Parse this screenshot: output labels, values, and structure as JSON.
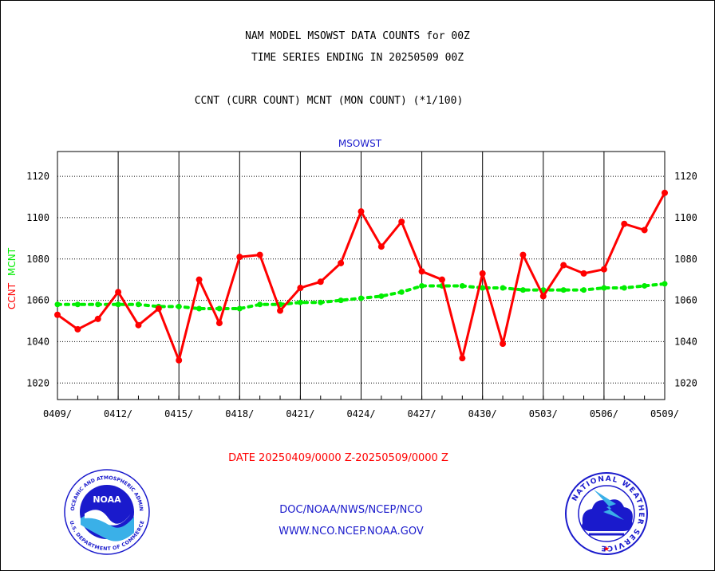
{
  "header": {
    "title_line1": "NAM MODEL MSOWST DATA COUNTS for 00Z",
    "title_line2": "TIME SERIES ENDING IN 20250509 00Z",
    "legend_line": "CCNT (CURR COUNT) MCNT (MON COUNT) (*1/100)"
  },
  "chart_data": {
    "type": "line",
    "title": "MSOWST",
    "ylabel_ccnt": "CCNT",
    "ylabel_mcnt": "MCNT",
    "xlabel": "DATE 20250409/0000 Z-20250509/0000 Z",
    "ylim": [
      1012,
      1132
    ],
    "y_ticks": [
      1020,
      1040,
      1060,
      1080,
      1100,
      1120
    ],
    "x_ticks": [
      "0409/",
      "0412/",
      "0415/",
      "0418/",
      "0421/",
      "0424/",
      "0427/",
      "0430/",
      "0503/",
      "0506/",
      "0509/"
    ],
    "x": [
      "0409",
      "0410",
      "0411",
      "0412",
      "0413",
      "0414",
      "0415",
      "0416",
      "0417",
      "0418",
      "0419",
      "0420",
      "0421",
      "0422",
      "0423",
      "0424",
      "0425",
      "0426",
      "0427",
      "0428",
      "0429",
      "0430",
      "0501",
      "0502",
      "0503",
      "0504",
      "0505",
      "0506",
      "0507",
      "0508",
      "0509"
    ],
    "grid": true,
    "series": [
      {
        "name": "CCNT",
        "color": "#ff0000",
        "values": [
          1053,
          1046,
          1051,
          1064,
          1048,
          1056,
          1031,
          1070,
          1049,
          1081,
          1082,
          1055,
          1066,
          1069,
          1078,
          1103,
          1086,
          1098,
          1074,
          1070,
          1032,
          1073,
          1039,
          1082,
          1062,
          1077,
          1073,
          1075,
          1097,
          1094,
          1112
        ]
      },
      {
        "name": "MCNT",
        "color": "#00ee00",
        "values": [
          1058,
          1058,
          1058,
          1058,
          1058,
          1057,
          1057,
          1056,
          1056,
          1056,
          1058,
          1058,
          1059,
          1059,
          1060,
          1061,
          1062,
          1064,
          1067,
          1067,
          1067,
          1066,
          1066,
          1065,
          1065,
          1065,
          1065,
          1066,
          1066,
          1067,
          1068
        ]
      }
    ]
  },
  "footer": {
    "line1": "DOC/NOAA/NWS/NCEP/NCO",
    "line2": "WWW.NCO.NCEP.NOAA.GOV"
  },
  "logos": {
    "noaa_center": "NOAA",
    "noaa_ring_top": "NATIONAL OCEANIC AND ATMOSPHERIC ADMINISTRATION",
    "noaa_ring_bottom": "U.S. DEPARTMENT OF COMMERCE",
    "nws_ring": "NATIONAL WEATHER SERVICE"
  },
  "colors": {
    "ccnt": "#ff0000",
    "mcnt": "#00ee00",
    "axis_title": "#1a1acc",
    "footer": "#1a1acc"
  }
}
